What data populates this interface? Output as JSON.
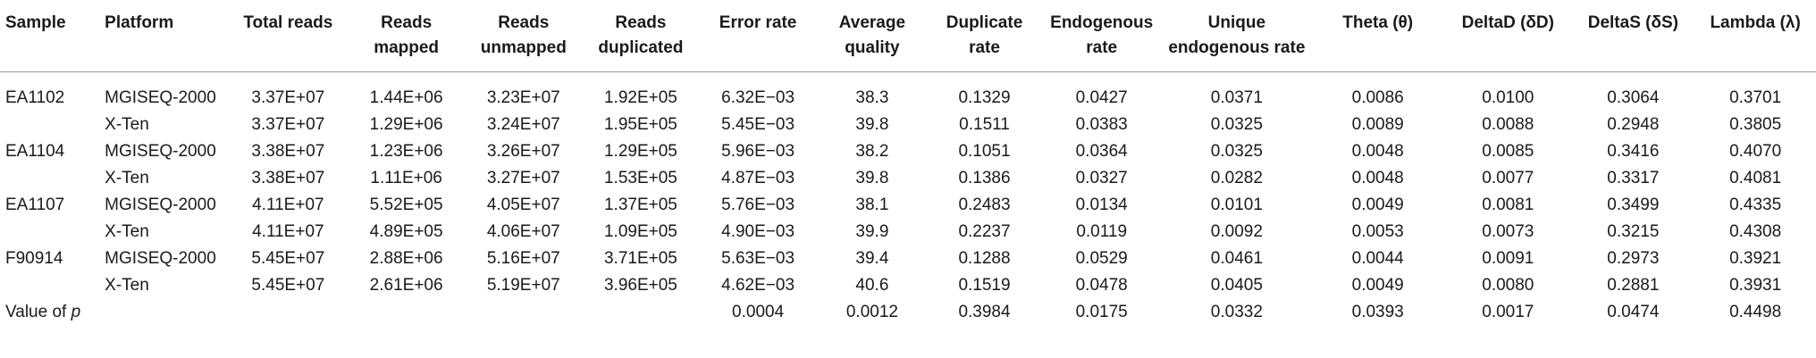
{
  "headers": [
    "Sample",
    "Platform",
    "Total reads",
    "Reads mapped",
    "Reads unmapped",
    "Reads duplicated",
    "Error rate",
    "Average quality",
    "Duplicate rate",
    "Endogenous rate",
    "Unique endogenous rate",
    "Theta (θ)",
    "DeltaD (δD)",
    "DeltaS (δS)",
    "Lambda (λ)"
  ],
  "rows": [
    [
      "EA1102",
      "MGISEQ-2000",
      "3.37E+07",
      "1.44E+06",
      "3.23E+07",
      "1.92E+05",
      "6.32E−03",
      "38.3",
      "0.1329",
      "0.0427",
      "0.0371",
      "0.0086",
      "0.0100",
      "0.3064",
      "0.3701"
    ],
    [
      "",
      "X-Ten",
      "3.37E+07",
      "1.29E+06",
      "3.24E+07",
      "1.95E+05",
      "5.45E−03",
      "39.8",
      "0.1511",
      "0.0383",
      "0.0325",
      "0.0089",
      "0.0088",
      "0.2948",
      "0.3805"
    ],
    [
      "EA1104",
      "MGISEQ-2000",
      "3.38E+07",
      "1.23E+06",
      "3.26E+07",
      "1.29E+05",
      "5.96E−03",
      "38.2",
      "0.1051",
      "0.0364",
      "0.0325",
      "0.0048",
      "0.0085",
      "0.3416",
      "0.4070"
    ],
    [
      "",
      "X-Ten",
      "3.38E+07",
      "1.11E+06",
      "3.27E+07",
      "1.53E+05",
      "4.87E−03",
      "39.8",
      "0.1386",
      "0.0327",
      "0.0282",
      "0.0048",
      "0.0077",
      "0.3317",
      "0.4081"
    ],
    [
      "EA1107",
      "MGISEQ-2000",
      "4.11E+07",
      "5.52E+05",
      "4.05E+07",
      "1.37E+05",
      "5.76E−03",
      "38.1",
      "0.2483",
      "0.0134",
      "0.0101",
      "0.0049",
      "0.0081",
      "0.3499",
      "0.4335"
    ],
    [
      "",
      "X-Ten",
      "4.11E+07",
      "4.89E+05",
      "4.06E+07",
      "1.09E+05",
      "4.90E−03",
      "39.9",
      "0.2237",
      "0.0119",
      "0.0092",
      "0.0053",
      "0.0073",
      "0.3215",
      "0.4308"
    ],
    [
      "F90914",
      "MGISEQ-2000",
      "5.45E+07",
      "2.88E+06",
      "5.16E+07",
      "3.71E+05",
      "5.63E−03",
      "39.4",
      "0.1288",
      "0.0529",
      "0.0461",
      "0.0044",
      "0.0091",
      "0.2973",
      "0.3921"
    ],
    [
      "",
      "X-Ten",
      "5.45E+07",
      "2.61E+06",
      "5.19E+07",
      "3.96E+05",
      "4.62E−03",
      "40.6",
      "0.1519",
      "0.0478",
      "0.0405",
      "0.0049",
      "0.0080",
      "0.2881",
      "0.3931"
    ]
  ],
  "pvalue_row": {
    "label_prefix": "Value of ",
    "label_var": "p",
    "values": [
      "",
      "",
      "",
      "",
      "",
      "0.0004",
      "0.0012",
      "0.3984",
      "0.0175",
      "0.0332",
      "0.0393",
      "0.0017",
      "0.0474",
      "0.4498"
    ]
  }
}
